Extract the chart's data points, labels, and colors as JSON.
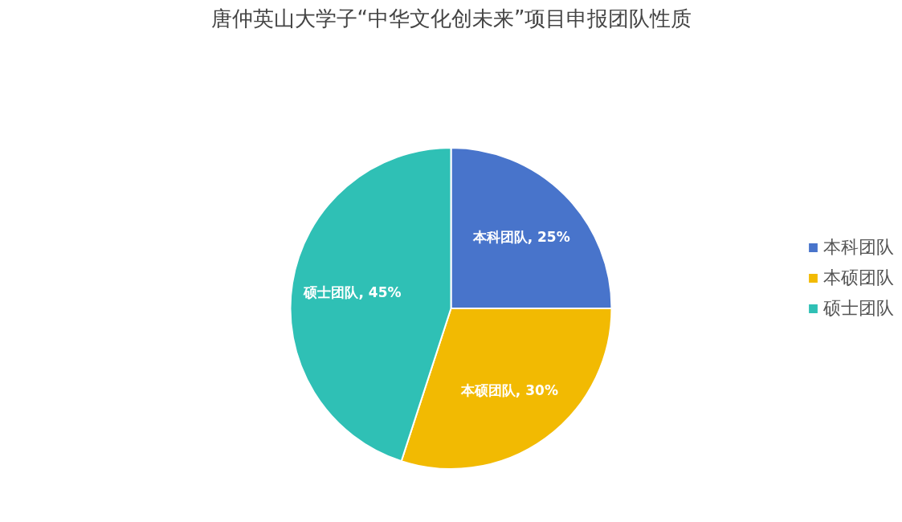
{
  "chart_data": {
    "type": "pie",
    "title": "唐仲英山大学子“中华文化创未来”项目申报团队性质",
    "categories": [
      "本科团队",
      "本硕团队",
      "硕士团队"
    ],
    "values": [
      25,
      30,
      45
    ],
    "colors": [
      "#4874cb",
      "#f2ba02",
      "#2fc0b5"
    ],
    "value_labels": [
      "本科团队, 25%",
      "本硕团队, 30%",
      "硕士团队, 45%"
    ],
    "legend": "right"
  }
}
